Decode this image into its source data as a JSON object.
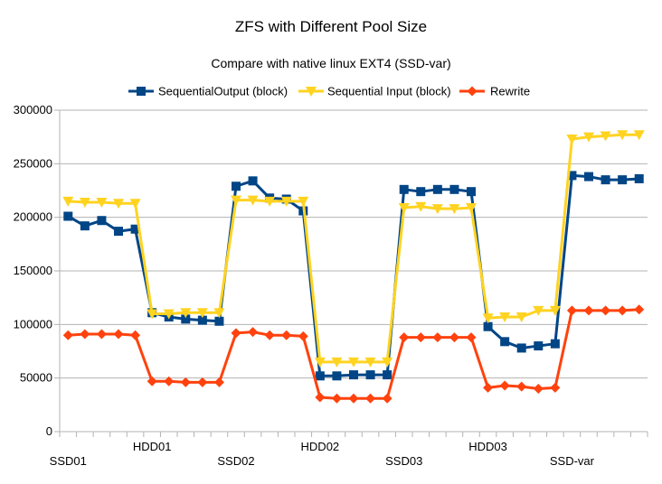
{
  "chart_data": {
    "type": "line",
    "title": "ZFS with Different Pool Size",
    "subtitle": "Compare with native linux EXT4 (SSD-var)",
    "xlabel": "",
    "ylabel": "",
    "ylim": [
      0,
      300000
    ],
    "yticks": [
      0,
      50000,
      100000,
      150000,
      200000,
      250000,
      300000
    ],
    "ytick_labels": [
      "0",
      "50000",
      "100000",
      "150000",
      "200000",
      "250000",
      "300000"
    ],
    "grid": true,
    "legend_position": "top",
    "x_count": 35,
    "x_labels": [
      {
        "index": 0,
        "label": "SSD01",
        "row": 2
      },
      {
        "index": 5,
        "label": "HDD01",
        "row": 1
      },
      {
        "index": 10,
        "label": "SSD02",
        "row": 2
      },
      {
        "index": 15,
        "label": "HDD02",
        "row": 1
      },
      {
        "index": 20,
        "label": "SSD03",
        "row": 2
      },
      {
        "index": 25,
        "label": "HDD03",
        "row": 1
      },
      {
        "index": 30,
        "label": "SSD-var",
        "row": 2
      }
    ],
    "series": [
      {
        "name": "SequentialOutput (block)",
        "color": "#004586",
        "marker": "square",
        "values": [
          201000,
          192000,
          197000,
          187000,
          189000,
          111000,
          107000,
          105000,
          104000,
          103000,
          229000,
          234000,
          218000,
          217000,
          206000,
          52000,
          52000,
          53000,
          53000,
          53000,
          226000,
          224000,
          226000,
          226000,
          224000,
          98000,
          84000,
          78000,
          80000,
          82000,
          239000,
          238000,
          235000,
          235000,
          236000
        ]
      },
      {
        "name": "Sequential Input (block)",
        "color": "#ffd320",
        "marker": "triangle-down",
        "values": [
          215000,
          214000,
          214000,
          213000,
          213000,
          110000,
          110000,
          111000,
          111000,
          111000,
          216000,
          216000,
          215000,
          215000,
          215000,
          65000,
          65000,
          65000,
          65000,
          65000,
          209000,
          210000,
          208000,
          208000,
          209000,
          106000,
          107000,
          107000,
          113000,
          113000,
          273000,
          275000,
          276000,
          277000,
          277000
        ]
      },
      {
        "name": "Rewrite",
        "color": "#ff420e",
        "marker": "diamond",
        "values": [
          90000,
          91000,
          91000,
          91000,
          90000,
          47000,
          47000,
          46000,
          46000,
          46000,
          92000,
          93000,
          90000,
          90000,
          89000,
          32000,
          31000,
          31000,
          31000,
          31000,
          88000,
          88000,
          88000,
          88000,
          88000,
          41000,
          43000,
          42000,
          40000,
          41000,
          113000,
          113000,
          113000,
          113000,
          114000
        ]
      }
    ]
  }
}
